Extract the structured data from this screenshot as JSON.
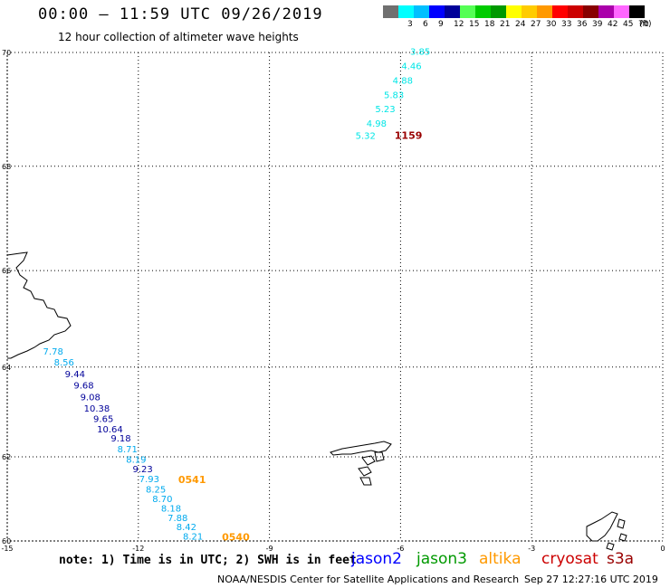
{
  "header": {
    "title": "00:00 – 11:59 UTC 09/26/2019",
    "subtitle": "12 hour collection of altimeter wave heights"
  },
  "legend": {
    "unit": "(ft)",
    "bins": [
      {
        "label": "",
        "color": "#707070"
      },
      {
        "label": "3",
        "color": "#00ffff"
      },
      {
        "label": "6",
        "color": "#00bfff"
      },
      {
        "label": "9",
        "color": "#0000ff"
      },
      {
        "label": "12",
        "color": "#000099"
      },
      {
        "label": "15",
        "color": "#55ff55"
      },
      {
        "label": "18",
        "color": "#00cc00"
      },
      {
        "label": "21",
        "color": "#009900"
      },
      {
        "label": "24",
        "color": "#ffff00"
      },
      {
        "label": "27",
        "color": "#ffcc00"
      },
      {
        "label": "30",
        "color": "#ff9900"
      },
      {
        "label": "33",
        "color": "#ff0000"
      },
      {
        "label": "36",
        "color": "#cc0000"
      },
      {
        "label": "39",
        "color": "#880000"
      },
      {
        "label": "42",
        "color": "#aa00aa"
      },
      {
        "label": "45",
        "color": "#ff66ff"
      },
      {
        "label": "70",
        "color": "#000000"
      }
    ]
  },
  "axes": {
    "lat_ticks": [
      "70",
      "68",
      "66",
      "64",
      "62",
      "60"
    ],
    "lon_ticks": [
      "-15",
      "-12",
      "-9",
      "-6",
      "-3",
      "0"
    ]
  },
  "tracks": [
    {
      "satellite": "cryosat",
      "time": "1159",
      "time_color": "#990000",
      "observations": [
        {
          "lon": -5.55,
          "lat": 69.96,
          "swh": "3.85",
          "color": "#00e6e6"
        },
        {
          "lon": -5.75,
          "lat": 69.72,
          "swh": "4.46",
          "color": "#00e6e6"
        },
        {
          "lon": -5.95,
          "lat": 69.47,
          "swh": "4.88",
          "color": "#00e6e6"
        },
        {
          "lon": -6.15,
          "lat": 69.22,
          "swh": "5.83",
          "color": "#00e6e6"
        },
        {
          "lon": -6.35,
          "lat": 68.97,
          "swh": "5.23",
          "color": "#00e6e6"
        },
        {
          "lon": -6.55,
          "lat": 68.72,
          "swh": "4.98",
          "color": "#00e6e6"
        },
        {
          "lon": -6.8,
          "lat": 68.5,
          "swh": "5.32",
          "color": "#00e6e6"
        }
      ]
    },
    {
      "satellite": "altika",
      "time": "0541",
      "time_color": "#ff9900",
      "observations": [
        {
          "lon": -13.95,
          "lat": 64.27,
          "swh": "7.78",
          "color": "#00aaee"
        },
        {
          "lon": -13.7,
          "lat": 64.03,
          "swh": "8.56",
          "color": "#00aaee"
        },
        {
          "lon": -13.45,
          "lat": 63.78,
          "swh": "9.44",
          "color": "#000099"
        },
        {
          "lon": -13.25,
          "lat": 63.53,
          "swh": "9.68",
          "color": "#000099"
        },
        {
          "lon": -13.1,
          "lat": 63.28,
          "swh": "9.08",
          "color": "#000099"
        },
        {
          "lon": -12.95,
          "lat": 63.03,
          "swh": "10.38",
          "color": "#000099"
        },
        {
          "lon": -12.8,
          "lat": 62.79,
          "swh": "9.65",
          "color": "#000099"
        },
        {
          "lon": -12.65,
          "lat": 62.56,
          "swh": "10.64",
          "color": "#000099"
        },
        {
          "lon": -12.4,
          "lat": 62.35,
          "swh": "9.18",
          "color": "#000099"
        },
        {
          "lon": -12.25,
          "lat": 62.1,
          "swh": "8.71",
          "color": "#00aaee"
        },
        {
          "lon": -12.05,
          "lat": 61.87,
          "swh": "8.19",
          "color": "#00aaee"
        },
        {
          "lon": -11.9,
          "lat": 61.64,
          "swh": "9.23",
          "color": "#000099"
        },
        {
          "lon": -11.75,
          "lat": 61.41,
          "swh": "7.93",
          "color": "#00aaee"
        }
      ]
    },
    {
      "satellite": "altika",
      "time": "0540",
      "time_color": "#ff9900",
      "observations": [
        {
          "lon": -11.6,
          "lat": 61.17,
          "swh": "8.25",
          "color": "#00aaee"
        },
        {
          "lon": -11.45,
          "lat": 60.94,
          "swh": "8.70",
          "color": "#00aaee"
        },
        {
          "lon": -11.25,
          "lat": 60.71,
          "swh": "8.18",
          "color": "#00aaee"
        },
        {
          "lon": -11.1,
          "lat": 60.48,
          "swh": "7.88",
          "color": "#00aaee"
        },
        {
          "lon": -10.9,
          "lat": 60.26,
          "swh": "8.42",
          "color": "#00aaee"
        },
        {
          "lon": -10.75,
          "lat": 60.03,
          "swh": "8.21",
          "color": "#00aaee"
        }
      ]
    }
  ],
  "satellites": [
    {
      "name": "jason2",
      "color": "#0000ff"
    },
    {
      "name": "jason3",
      "color": "#009900"
    },
    {
      "name": "altika",
      "color": "#ff9900"
    },
    {
      "name": "cryosat",
      "color": "#cc0000"
    },
    {
      "name": "s3a",
      "color": "#990000"
    }
  ],
  "footer": {
    "note": "note: 1) Time is in UTC; 2) SWH is in feet",
    "credit": "NOAA/NESDIS Center for Satellite Applications and Research",
    "timestamp": "Sep 27 12:27:16 UTC 2019"
  }
}
